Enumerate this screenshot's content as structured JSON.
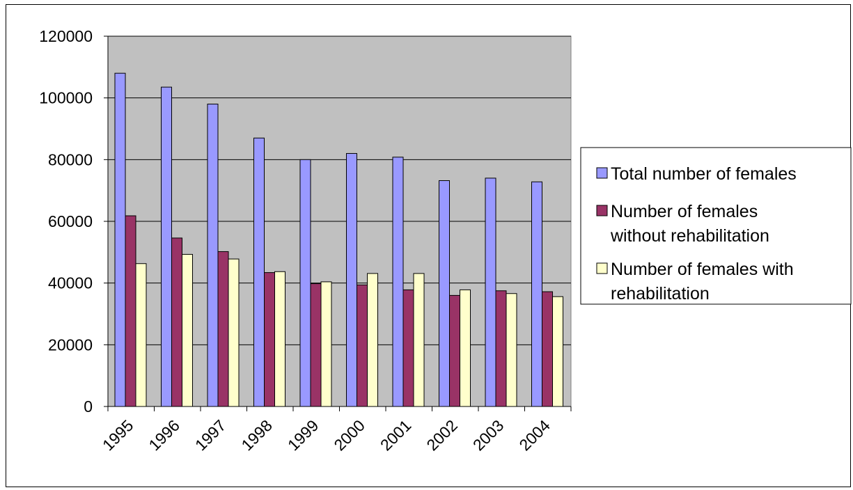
{
  "chart_data": {
    "type": "bar",
    "title": "",
    "xlabel": "",
    "ylabel": "",
    "categories": [
      "1995",
      "1996",
      "1997",
      "1998",
      "1999",
      "2000",
      "2001",
      "2002",
      "2003",
      "2004"
    ],
    "series": [
      {
        "name": "Total number of females",
        "color": "#9999ff",
        "values": [
          108000,
          103500,
          98000,
          87000,
          80000,
          82000,
          80800,
          73200,
          74000,
          72800
        ]
      },
      {
        "name": "Number of females without rehabilitation",
        "color": "#993366",
        "values": [
          61800,
          54600,
          50200,
          43400,
          39800,
          39400,
          37800,
          36000,
          37500,
          37200
        ]
      },
      {
        "name": "Number of females with rehabilitation",
        "color": "#ffffcc",
        "values": [
          46300,
          49300,
          47800,
          43700,
          40400,
          43100,
          43100,
          37800,
          36600,
          35600
        ]
      }
    ],
    "yticks": [
      "0",
      "20000",
      "40000",
      "60000",
      "80000",
      "100000",
      "120000"
    ],
    "ylim": [
      0,
      120000
    ],
    "grid": true,
    "plot_background": "#c0c0c0",
    "legend_position": "right"
  }
}
